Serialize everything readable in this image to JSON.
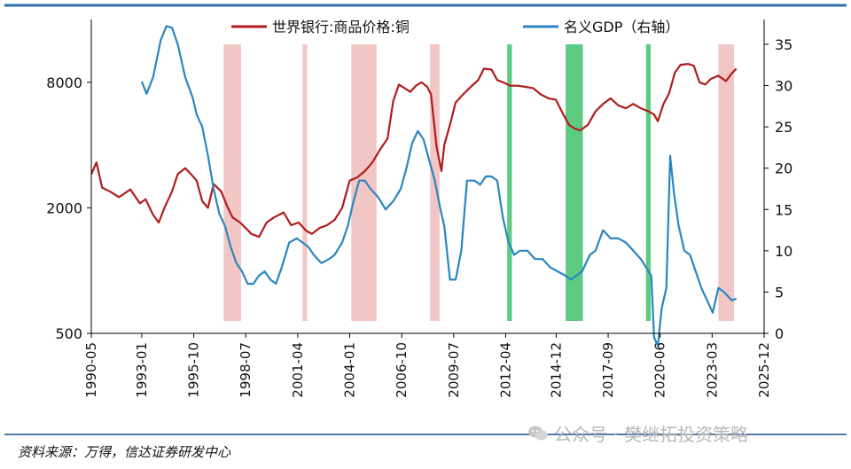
{
  "chart_data": {
    "type": "line",
    "title": "",
    "legend": [
      "世界银行:商品价格:铜",
      "名义GDP（右轴）"
    ],
    "colors": {
      "copper": "#b01c1c",
      "gdp": "#2a86c0",
      "recession": "#f3c6c6",
      "expansion": "#5ecb82",
      "axis": "#000000",
      "frame_top": "#2f6fae",
      "bottom_rule": "#1b4e8b"
    },
    "x_range": [
      1990.33,
      2025.92
    ],
    "x_ticks": [
      {
        "label": "1990-05",
        "t": 1990.33
      },
      {
        "label": "1993-01",
        "t": 1993.0
      },
      {
        "label": "1995-10",
        "t": 1995.75
      },
      {
        "label": "1998-07",
        "t": 1998.5
      },
      {
        "label": "2001-04",
        "t": 2001.25
      },
      {
        "label": "2004-01",
        "t": 2004.0
      },
      {
        "label": "2006-10",
        "t": 2006.75
      },
      {
        "label": "2009-07",
        "t": 2009.5
      },
      {
        "label": "2012-04",
        "t": 2012.25
      },
      {
        "label": "2014-12",
        "t": 2014.92
      },
      {
        "label": "2017-09",
        "t": 2017.67
      },
      {
        "label": "2020-06",
        "t": 2020.42
      },
      {
        "label": "2023-03",
        "t": 2023.17
      },
      {
        "label": "2025-12",
        "t": 2025.92
      }
    ],
    "left_axis": {
      "scale": "log",
      "range": [
        500,
        16000
      ],
      "ticks": [
        500,
        2000,
        8000
      ]
    },
    "right_axis": {
      "scale": "linear",
      "range": [
        0,
        38
      ],
      "ticks": [
        0,
        5,
        10,
        15,
        20,
        25,
        30,
        35
      ]
    },
    "shaded_periods": [
      {
        "start": 1997.33,
        "end": 1998.25,
        "kind": "recession"
      },
      {
        "start": 2001.5,
        "end": 2001.75,
        "kind": "recession"
      },
      {
        "start": 2004.08,
        "end": 2005.42,
        "kind": "recession"
      },
      {
        "start": 2008.25,
        "end": 2008.75,
        "kind": "recession"
      },
      {
        "start": 2012.33,
        "end": 2012.58,
        "kind": "expansion"
      },
      {
        "start": 2015.42,
        "end": 2016.33,
        "kind": "expansion"
      },
      {
        "start": 2019.67,
        "end": 2019.92,
        "kind": "expansion"
      },
      {
        "start": 2023.5,
        "end": 2024.33,
        "kind": "recession"
      }
    ],
    "series": [
      {
        "name": "世界银行:商品价格:铜",
        "axis": "left",
        "x": [
          1990.33,
          1990.6,
          1990.9,
          1991.3,
          1991.8,
          1992.4,
          1992.9,
          1993.2,
          1993.6,
          1993.9,
          1994.2,
          1994.6,
          1994.9,
          1995.3,
          1995.6,
          1995.9,
          1996.2,
          1996.5,
          1996.8,
          1997.2,
          1997.5,
          1997.8,
          1998.2,
          1998.5,
          1998.8,
          1999.2,
          1999.6,
          2000.0,
          2000.5,
          2000.9,
          2001.3,
          2001.7,
          2002.0,
          2002.4,
          2002.8,
          2003.2,
          2003.6,
          2004.0,
          2004.4,
          2004.8,
          2005.2,
          2005.6,
          2006.0,
          2006.3,
          2006.6,
          2006.9,
          2007.2,
          2007.5,
          2007.8,
          2008.1,
          2008.3,
          2008.6,
          2008.85,
          2009.0,
          2009.3,
          2009.6,
          2010.0,
          2010.4,
          2010.8,
          2011.1,
          2011.5,
          2011.8,
          2012.1,
          2012.5,
          2012.9,
          2013.3,
          2013.7,
          2014.1,
          2014.5,
          2014.9,
          2015.3,
          2015.6,
          2015.9,
          2016.2,
          2016.6,
          2017.0,
          2017.4,
          2017.8,
          2018.2,
          2018.6,
          2019.0,
          2019.4,
          2019.8,
          2020.1,
          2020.3,
          2020.6,
          2020.9,
          2021.2,
          2021.5,
          2021.9,
          2022.2,
          2022.5,
          2022.8,
          2023.1,
          2023.5,
          2023.9,
          2024.2,
          2024.45
        ],
        "values": [
          2900,
          3300,
          2500,
          2400,
          2250,
          2450,
          2100,
          2200,
          1850,
          1700,
          2000,
          2400,
          2900,
          3100,
          2900,
          2700,
          2150,
          2000,
          2600,
          2400,
          2050,
          1800,
          1700,
          1600,
          1500,
          1450,
          1700,
          1800,
          1900,
          1650,
          1700,
          1550,
          1500,
          1600,
          1650,
          1750,
          2000,
          2700,
          2800,
          3000,
          3300,
          3800,
          4300,
          6500,
          7800,
          7500,
          7200,
          7700,
          8000,
          7600,
          7000,
          3900,
          3000,
          4000,
          5000,
          6400,
          7000,
          7600,
          8200,
          9300,
          9200,
          8200,
          8000,
          7700,
          7700,
          7600,
          7500,
          7000,
          6700,
          6600,
          5600,
          5000,
          4800,
          4700,
          5000,
          5800,
          6300,
          6700,
          6200,
          6000,
          6300,
          6000,
          5800,
          5600,
          5200,
          6300,
          7100,
          8900,
          9700,
          9800,
          9600,
          8000,
          7800,
          8300,
          8600,
          8100,
          8800,
          9300
        ]
      },
      {
        "name": "名义GDP（右轴）",
        "axis": "right",
        "x": [
          1993.0,
          1993.25,
          1993.6,
          1994.0,
          1994.3,
          1994.6,
          1994.9,
          1995.3,
          1995.7,
          1995.9,
          1996.2,
          1996.5,
          1996.8,
          1997.1,
          1997.4,
          1997.7,
          1998.0,
          1998.3,
          1998.6,
          1998.9,
          1999.2,
          1999.5,
          1999.8,
          2000.1,
          2000.4,
          2000.8,
          2001.2,
          2001.5,
          2001.8,
          2002.1,
          2002.5,
          2002.9,
          2003.2,
          2003.6,
          2003.9,
          2004.2,
          2004.5,
          2004.8,
          2005.1,
          2005.5,
          2005.9,
          2006.3,
          2006.7,
          2007.0,
          2007.3,
          2007.6,
          2007.9,
          2008.2,
          2008.5,
          2008.8,
          2009.0,
          2009.3,
          2009.6,
          2009.9,
          2010.2,
          2010.6,
          2010.9,
          2011.2,
          2011.5,
          2011.8,
          2012.1,
          2012.4,
          2012.7,
          2013.0,
          2013.4,
          2013.8,
          2014.2,
          2014.6,
          2015.0,
          2015.4,
          2015.7,
          2016.0,
          2016.3,
          2016.7,
          2017.0,
          2017.4,
          2017.8,
          2018.2,
          2018.6,
          2019.0,
          2019.4,
          2019.8,
          2019.95,
          2020.1,
          2020.3,
          2020.5,
          2020.75,
          2020.95,
          2021.15,
          2021.4,
          2021.7,
          2022.0,
          2022.3,
          2022.6,
          2022.9,
          2023.2,
          2023.5,
          2023.8,
          2024.2,
          2024.45
        ],
        "values": [
          30.5,
          29.0,
          31.0,
          35.5,
          37.2,
          37.0,
          35.0,
          31.0,
          28.5,
          26.5,
          25.0,
          21.5,
          17.5,
          14.5,
          13.0,
          10.5,
          8.5,
          7.5,
          6.0,
          6.0,
          7.0,
          7.5,
          6.5,
          6.0,
          8.0,
          11.0,
          11.5,
          11.0,
          10.5,
          9.5,
          8.5,
          9.0,
          9.5,
          11.0,
          13.0,
          16.0,
          18.5,
          18.5,
          17.5,
          16.5,
          15.0,
          16.0,
          17.5,
          20.0,
          23.0,
          24.5,
          23.5,
          21.0,
          18.5,
          15.0,
          13.0,
          6.5,
          6.5,
          10.0,
          18.5,
          18.5,
          18.0,
          19.0,
          19.0,
          18.5,
          14.0,
          11.0,
          9.5,
          10.0,
          10.0,
          9.0,
          9.0,
          8.0,
          7.5,
          7.0,
          6.5,
          7.0,
          7.5,
          9.5,
          10.0,
          12.5,
          11.5,
          11.5,
          11.0,
          10.0,
          9.0,
          7.5,
          7.0,
          -0.5,
          -1.5,
          3.0,
          5.5,
          21.5,
          17.0,
          13.0,
          10.0,
          9.5,
          7.5,
          5.5,
          4.0,
          2.5,
          5.5,
          5.0,
          4.0,
          4.2
        ]
      }
    ]
  },
  "footer": {
    "source": "资料来源：万得，信达证券研发中心",
    "watermark": "公众号 · 樊继拓投资策略"
  }
}
